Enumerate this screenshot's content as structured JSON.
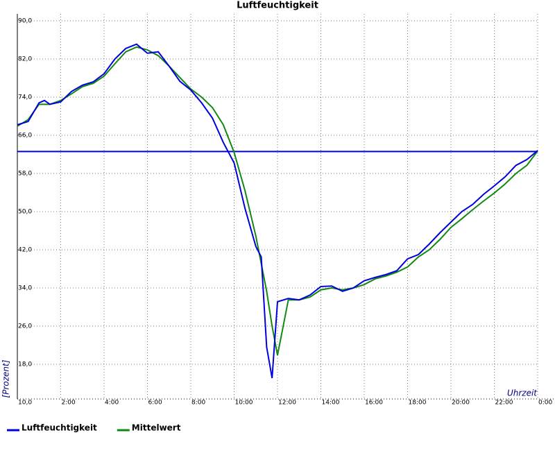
{
  "chart_data": {
    "type": "line",
    "title": "Luftfeuchtigkeit",
    "y_label": "[Prozent]",
    "x_label": "Uhrzeit",
    "x": [
      0,
      0.5,
      1,
      1.25,
      1.5,
      2,
      2.5,
      3,
      3.5,
      4,
      4.5,
      5,
      5.5,
      6,
      6.5,
      7,
      7.5,
      8,
      8.5,
      9,
      9.5,
      10,
      10.5,
      11,
      11.25,
      11.5,
      11.75,
      12,
      12.5,
      13,
      13.5,
      14,
      14.5,
      15,
      15.5,
      16,
      16.5,
      17,
      17.5,
      18,
      18.5,
      19,
      19.5,
      20,
      20.5,
      21,
      21.5,
      22,
      22.5,
      23,
      23.5,
      24
    ],
    "series": [
      {
        "name": "Luftfeuchtigkeit",
        "color": "#0000dd",
        "values": [
          68.2,
          68.9,
          72.8,
          73.3,
          72.5,
          73.0,
          75.2,
          76.5,
          77.2,
          78.9,
          82.0,
          84.2,
          85.1,
          83.2,
          83.5,
          80.5,
          77.3,
          75.5,
          72.8,
          69.6,
          64.5,
          60.2,
          50.7,
          42.7,
          40.5,
          21.6,
          15.1,
          31.1,
          31.8,
          31.5,
          32.5,
          34.3,
          34.4,
          33.3,
          34.0,
          35.5,
          36.2,
          36.8,
          37.6,
          40.1,
          41.0,
          43.2,
          45.6,
          47.8,
          50.0,
          51.5,
          53.6,
          55.4,
          57.3,
          59.7,
          60.9,
          62.8
        ]
      },
      {
        "name": "Mittelwert",
        "color": "#118811",
        "values": [
          67.9,
          69.3,
          72.5,
          72.5,
          72.5,
          73.3,
          74.7,
          76.2,
          76.9,
          78.4,
          81.0,
          83.5,
          84.5,
          83.9,
          82.7,
          80.5,
          78.1,
          75.7,
          74.0,
          71.8,
          68.2,
          62.4,
          54.4,
          44.9,
          39.1,
          33.3,
          26.0,
          19.9,
          31.5,
          31.5,
          32.1,
          33.6,
          34.0,
          33.6,
          34.0,
          34.7,
          35.9,
          36.5,
          37.3,
          38.4,
          40.5,
          42.0,
          44.2,
          46.7,
          48.5,
          50.4,
          52.2,
          53.9,
          55.8,
          58.0,
          59.7,
          62.7
        ]
      }
    ],
    "reference_line": {
      "value": 62.6,
      "color": "#0000dd"
    },
    "xlim": [
      0,
      24
    ],
    "xticks": [
      {
        "value": 2,
        "label": "2:00"
      },
      {
        "value": 4,
        "label": "4:00"
      },
      {
        "value": 6,
        "label": "6:00"
      },
      {
        "value": 8,
        "label": "8:00"
      },
      {
        "value": 10,
        "label": "10:00"
      },
      {
        "value": 12,
        "label": "12:00"
      },
      {
        "value": 14,
        "label": "14:00"
      },
      {
        "value": 16,
        "label": "16:00"
      },
      {
        "value": 18,
        "label": "18:00"
      },
      {
        "value": 20,
        "label": "20:00"
      },
      {
        "value": 22,
        "label": "22:00"
      },
      {
        "value": 24,
        "label": "0:00"
      }
    ],
    "ylim": [
      10,
      90
    ],
    "yticks": [
      {
        "value": 10,
        "label": "10,0"
      },
      {
        "value": 18,
        "label": "18,0"
      },
      {
        "value": 26,
        "label": "26,0"
      },
      {
        "value": 34,
        "label": "34,0"
      },
      {
        "value": 42,
        "label": "42,0"
      },
      {
        "value": 50,
        "label": "50,0"
      },
      {
        "value": 58,
        "label": "58,0"
      },
      {
        "value": 66,
        "label": "66,0"
      },
      {
        "value": 74,
        "label": "74,0"
      },
      {
        "value": 82,
        "label": "82,0"
      },
      {
        "value": 90,
        "label": "90,0"
      }
    ],
    "grid": true
  }
}
